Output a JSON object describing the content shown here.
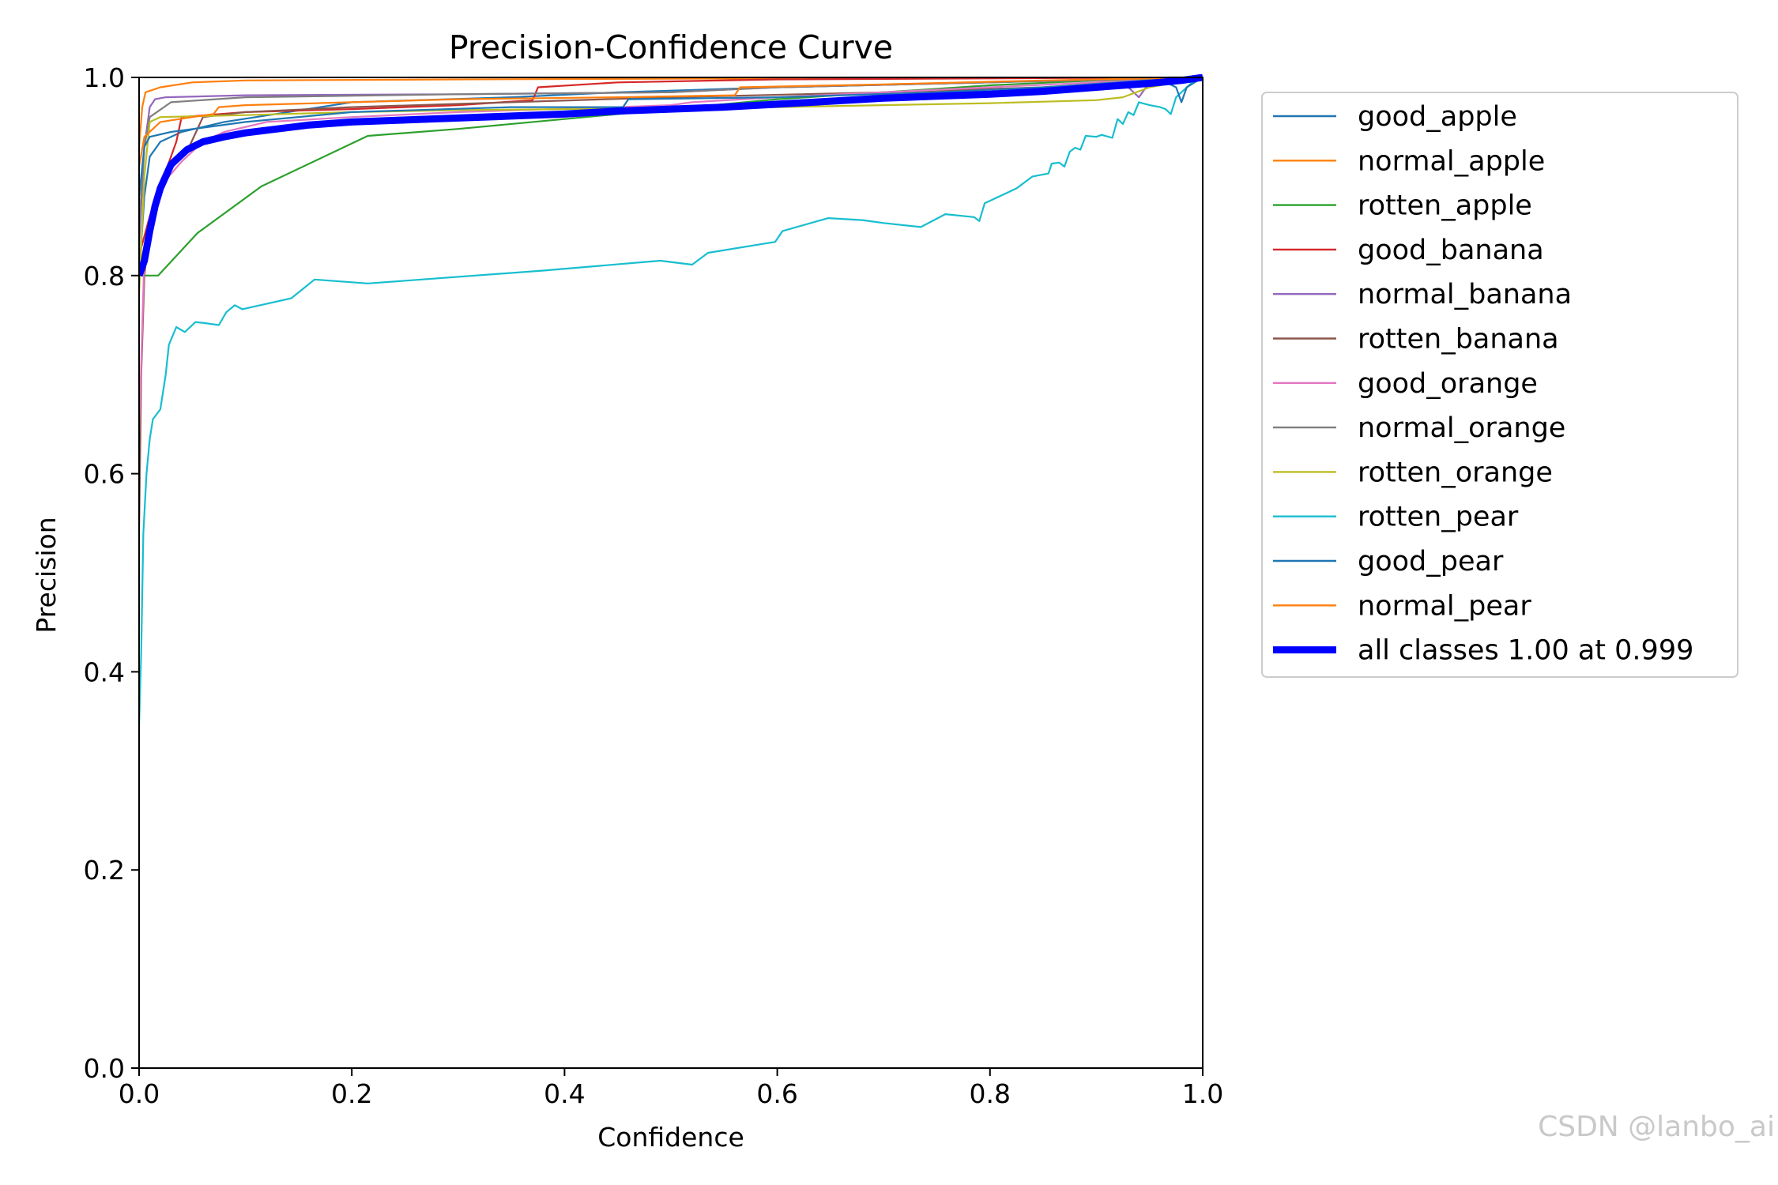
{
  "chart_data": {
    "type": "line",
    "title": "Precision-Confidence Curve",
    "xlabel": "Confidence",
    "ylabel": "Precision",
    "xlim": [
      0,
      1
    ],
    "ylim": [
      0,
      1
    ],
    "xticks": [
      "0.0",
      "0.2",
      "0.4",
      "0.6",
      "0.8",
      "1.0"
    ],
    "yticks": [
      "0.0",
      "0.2",
      "0.4",
      "0.6",
      "0.8",
      "1.0"
    ],
    "legend_position": "outside-right",
    "series": [
      {
        "name": "good_apple",
        "color": "#1f77b4",
        "width": 1,
        "points": [
          [
            0.0,
            0.8
          ],
          [
            0.005,
            0.88
          ],
          [
            0.01,
            0.92
          ],
          [
            0.02,
            0.935
          ],
          [
            0.04,
            0.945
          ],
          [
            0.08,
            0.955
          ],
          [
            0.14,
            0.965
          ],
          [
            0.2,
            0.975
          ],
          [
            0.35,
            0.98
          ],
          [
            0.45,
            0.985
          ],
          [
            0.6,
            0.99
          ],
          [
            0.8,
            0.995
          ],
          [
            0.9,
            0.998
          ],
          [
            0.97,
            1.0
          ],
          [
            1.0,
            1.0
          ]
        ]
      },
      {
        "name": "normal_apple",
        "color": "#ff7f0e",
        "width": 1,
        "points": [
          [
            0.0,
            0.93
          ],
          [
            0.003,
            0.97
          ],
          [
            0.006,
            0.985
          ],
          [
            0.02,
            0.99
          ],
          [
            0.05,
            0.995
          ],
          [
            0.1,
            0.997
          ],
          [
            0.3,
            0.998
          ],
          [
            0.6,
            0.999
          ],
          [
            1.0,
            1.0
          ]
        ]
      },
      {
        "name": "rotten_apple",
        "color": "#2ca02c",
        "width": 1,
        "points": [
          [
            0.0,
            0.8
          ],
          [
            0.018,
            0.8
          ],
          [
            0.055,
            0.843
          ],
          [
            0.115,
            0.89
          ],
          [
            0.215,
            0.941
          ],
          [
            0.3,
            0.948
          ],
          [
            0.4,
            0.958
          ],
          [
            0.5,
            0.968
          ],
          [
            0.6,
            0.978
          ],
          [
            0.7,
            0.985
          ],
          [
            0.8,
            0.992
          ],
          [
            0.9,
            0.997
          ],
          [
            1.0,
            1.0
          ]
        ]
      },
      {
        "name": "good_banana",
        "color": "#d62728",
        "width": 1,
        "points": [
          [
            0.0,
            0.82
          ],
          [
            0.01,
            0.86
          ],
          [
            0.02,
            0.89
          ],
          [
            0.035,
            0.935
          ],
          [
            0.04,
            0.96
          ],
          [
            0.1,
            0.965
          ],
          [
            0.2,
            0.968
          ],
          [
            0.3,
            0.972
          ],
          [
            0.37,
            0.977
          ],
          [
            0.375,
            0.99
          ],
          [
            0.45,
            0.995
          ],
          [
            0.6,
            0.998
          ],
          [
            1.0,
            1.0
          ]
        ]
      },
      {
        "name": "normal_banana",
        "color": "#9467bd",
        "width": 1,
        "points": [
          [
            0.0,
            0.83
          ],
          [
            0.005,
            0.93
          ],
          [
            0.01,
            0.97
          ],
          [
            0.015,
            0.978
          ],
          [
            0.025,
            0.98
          ],
          [
            0.1,
            0.982
          ],
          [
            0.3,
            0.983
          ],
          [
            0.5,
            0.985
          ],
          [
            0.6,
            0.99
          ],
          [
            0.8,
            0.995
          ],
          [
            0.9,
            0.998
          ],
          [
            0.93,
            0.99
          ],
          [
            0.94,
            0.98
          ],
          [
            0.95,
            0.995
          ],
          [
            1.0,
            1.0
          ]
        ]
      },
      {
        "name": "rotten_banana",
        "color": "#8c564b",
        "width": 1,
        "points": [
          [
            0.0,
            0.54
          ],
          [
            0.002,
            0.7
          ],
          [
            0.005,
            0.8
          ],
          [
            0.01,
            0.85
          ],
          [
            0.02,
            0.89
          ],
          [
            0.03,
            0.915
          ],
          [
            0.045,
            0.925
          ],
          [
            0.06,
            0.96
          ],
          [
            0.1,
            0.965
          ],
          [
            0.2,
            0.97
          ],
          [
            0.35,
            0.975
          ],
          [
            0.5,
            0.98
          ],
          [
            0.7,
            0.985
          ],
          [
            0.85,
            0.99
          ],
          [
            1.0,
            1.0
          ]
        ]
      },
      {
        "name": "good_orange",
        "color": "#e377c2",
        "width": 1,
        "points": [
          [
            0.0,
            0.64
          ],
          [
            0.005,
            0.82
          ],
          [
            0.01,
            0.86
          ],
          [
            0.02,
            0.89
          ],
          [
            0.04,
            0.915
          ],
          [
            0.06,
            0.935
          ],
          [
            0.08,
            0.945
          ],
          [
            0.12,
            0.955
          ],
          [
            0.2,
            0.96
          ],
          [
            0.3,
            0.965
          ],
          [
            0.45,
            0.97
          ],
          [
            0.5,
            0.972
          ],
          [
            0.52,
            0.975
          ],
          [
            0.6,
            0.98
          ],
          [
            0.8,
            0.99
          ],
          [
            1.0,
            1.0
          ]
        ]
      },
      {
        "name": "normal_orange",
        "color": "#7f7f7f",
        "width": 1,
        "points": [
          [
            0.0,
            0.85
          ],
          [
            0.005,
            0.93
          ],
          [
            0.01,
            0.96
          ],
          [
            0.03,
            0.975
          ],
          [
            0.1,
            0.98
          ],
          [
            0.3,
            0.983
          ],
          [
            0.5,
            0.985
          ],
          [
            0.6,
            0.99
          ],
          [
            0.8,
            0.995
          ],
          [
            1.0,
            1.0
          ]
        ]
      },
      {
        "name": "rotten_orange",
        "color": "#bcbd22",
        "width": 1,
        "points": [
          [
            0.0,
            0.78
          ],
          [
            0.005,
            0.9
          ],
          [
            0.01,
            0.955
          ],
          [
            0.02,
            0.96
          ],
          [
            0.1,
            0.962
          ],
          [
            0.2,
            0.965
          ],
          [
            0.3,
            0.967
          ],
          [
            0.4,
            0.968
          ],
          [
            0.5,
            0.969
          ],
          [
            0.6,
            0.97
          ],
          [
            0.7,
            0.972
          ],
          [
            0.8,
            0.974
          ],
          [
            0.9,
            0.977
          ],
          [
            0.925,
            0.98
          ],
          [
            0.95,
            0.99
          ],
          [
            1.0,
            1.0
          ]
        ]
      },
      {
        "name": "rotten_pear",
        "color": "#17becf",
        "width": 1,
        "points": [
          [
            0.0,
            0.345
          ],
          [
            0.002,
            0.42
          ],
          [
            0.004,
            0.54
          ],
          [
            0.007,
            0.6
          ],
          [
            0.01,
            0.635
          ],
          [
            0.013,
            0.655
          ],
          [
            0.02,
            0.665
          ],
          [
            0.025,
            0.7
          ],
          [
            0.028,
            0.73
          ],
          [
            0.035,
            0.748
          ],
          [
            0.043,
            0.743
          ],
          [
            0.053,
            0.753
          ],
          [
            0.062,
            0.752
          ],
          [
            0.075,
            0.75
          ],
          [
            0.082,
            0.763
          ],
          [
            0.09,
            0.77
          ],
          [
            0.097,
            0.766
          ],
          [
            0.143,
            0.777
          ],
          [
            0.165,
            0.796
          ],
          [
            0.215,
            0.792
          ],
          [
            0.38,
            0.805
          ],
          [
            0.49,
            0.815
          ],
          [
            0.52,
            0.811
          ],
          [
            0.535,
            0.823
          ],
          [
            0.598,
            0.834
          ],
          [
            0.605,
            0.845
          ],
          [
            0.648,
            0.858
          ],
          [
            0.68,
            0.856
          ],
          [
            0.7,
            0.853
          ],
          [
            0.735,
            0.849
          ],
          [
            0.758,
            0.862
          ],
          [
            0.785,
            0.859
          ],
          [
            0.79,
            0.855
          ],
          [
            0.795,
            0.873
          ],
          [
            0.825,
            0.888
          ],
          [
            0.84,
            0.9
          ],
          [
            0.855,
            0.903
          ],
          [
            0.858,
            0.913
          ],
          [
            0.865,
            0.914
          ],
          [
            0.87,
            0.91
          ],
          [
            0.875,
            0.925
          ],
          [
            0.88,
            0.929
          ],
          [
            0.885,
            0.927
          ],
          [
            0.89,
            0.941
          ],
          [
            0.9,
            0.94
          ],
          [
            0.905,
            0.942
          ],
          [
            0.915,
            0.939
          ],
          [
            0.92,
            0.958
          ],
          [
            0.925,
            0.953
          ],
          [
            0.93,
            0.965
          ],
          [
            0.935,
            0.962
          ],
          [
            0.94,
            0.975
          ],
          [
            0.95,
            0.972
          ],
          [
            0.96,
            0.97
          ],
          [
            0.965,
            0.968
          ],
          [
            0.97,
            0.963
          ],
          [
            0.975,
            0.98
          ],
          [
            0.98,
            0.985
          ],
          [
            0.99,
            0.995
          ],
          [
            1.0,
            1.0
          ]
        ]
      },
      {
        "name": "good_pear",
        "color": "#1f77b4",
        "width": 1,
        "points": [
          [
            0.0,
            0.88
          ],
          [
            0.005,
            0.93
          ],
          [
            0.01,
            0.94
          ],
          [
            0.03,
            0.945
          ],
          [
            0.1,
            0.955
          ],
          [
            0.2,
            0.965
          ],
          [
            0.35,
            0.97
          ],
          [
            0.455,
            0.97
          ],
          [
            0.46,
            0.978
          ],
          [
            0.6,
            0.98
          ],
          [
            0.75,
            0.985
          ],
          [
            0.85,
            0.99
          ],
          [
            0.92,
            0.995
          ],
          [
            0.96,
            0.998
          ],
          [
            0.975,
            0.99
          ],
          [
            0.98,
            0.975
          ],
          [
            0.985,
            0.99
          ],
          [
            1.0,
            1.0
          ]
        ]
      },
      {
        "name": "normal_pear",
        "color": "#ff7f0e",
        "width": 1,
        "points": [
          [
            0.0,
            0.91
          ],
          [
            0.005,
            0.94
          ],
          [
            0.02,
            0.955
          ],
          [
            0.05,
            0.96
          ],
          [
            0.07,
            0.963
          ],
          [
            0.075,
            0.97
          ],
          [
            0.1,
            0.972
          ],
          [
            0.2,
            0.975
          ],
          [
            0.3,
            0.978
          ],
          [
            0.45,
            0.98
          ],
          [
            0.56,
            0.982
          ],
          [
            0.565,
            0.99
          ],
          [
            0.7,
            0.993
          ],
          [
            0.85,
            0.997
          ],
          [
            1.0,
            1.0
          ]
        ]
      },
      {
        "name": "all classes 1.00 at 0.999",
        "color": "#0000ff",
        "width": 4,
        "points": [
          [
            0.0,
            0.8
          ],
          [
            0.005,
            0.815
          ],
          [
            0.01,
            0.845
          ],
          [
            0.015,
            0.87
          ],
          [
            0.02,
            0.888
          ],
          [
            0.03,
            0.912
          ],
          [
            0.045,
            0.927
          ],
          [
            0.06,
            0.935
          ],
          [
            0.08,
            0.94
          ],
          [
            0.1,
            0.944
          ],
          [
            0.13,
            0.948
          ],
          [
            0.16,
            0.952
          ],
          [
            0.2,
            0.955
          ],
          [
            0.25,
            0.957
          ],
          [
            0.3,
            0.959
          ],
          [
            0.35,
            0.961
          ],
          [
            0.4,
            0.963
          ],
          [
            0.45,
            0.966
          ],
          [
            0.5,
            0.968
          ],
          [
            0.55,
            0.97
          ],
          [
            0.6,
            0.973
          ],
          [
            0.65,
            0.976
          ],
          [
            0.7,
            0.979
          ],
          [
            0.75,
            0.981
          ],
          [
            0.8,
            0.983
          ],
          [
            0.85,
            0.986
          ],
          [
            0.9,
            0.99
          ],
          [
            0.95,
            0.994
          ],
          [
            0.98,
            0.997
          ],
          [
            1.0,
            1.0
          ]
        ]
      }
    ]
  },
  "watermark": "CSDN @lanbo_ai"
}
